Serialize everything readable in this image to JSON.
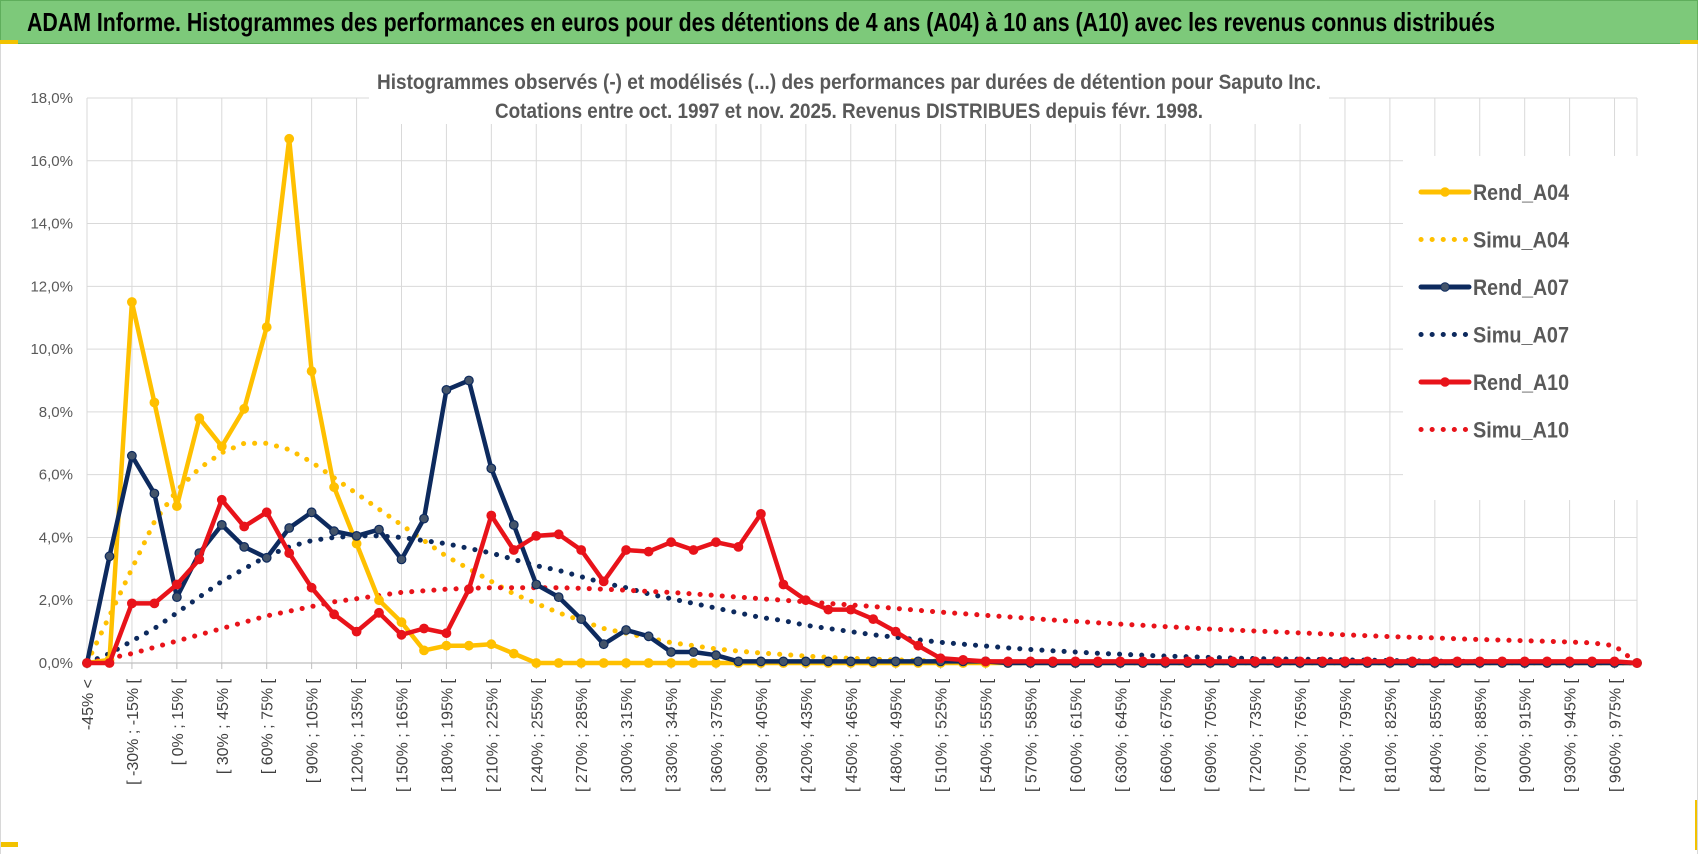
{
  "banner": {
    "title": "ADAM Informe. Histogrammes des performances en euros pour des détentions de 4 ans (A04) à 10 ans (A10) avec les revenus connus distribués"
  },
  "chart_data": {
    "type": "line",
    "title": "Histogrammes observés (-) et modélisés (...) des performances par durées de détention pour Saputo Inc.",
    "subtitle": "Cotations entre oct. 1997 et nov. 2025.  Revenus DISTRIBUES depuis févr. 1998.",
    "xlabel": "",
    "ylabel": "",
    "ylim": [
      0,
      18
    ],
    "yticks": [
      "0,0%",
      "2,0%",
      "4,0%",
      "6,0%",
      "8,0%",
      "10,0%",
      "12,0%",
      "14,0%",
      "16,0%",
      "18,0%"
    ],
    "grid": true,
    "legend_position": "right",
    "x_tick_labels": [
      "-45% <",
      "[ -30% ; -15% [",
      "[ 0% ; 15% [",
      "[ 30% ; 45% [",
      "[ 60% ; 75% [",
      "[ 90% ; 105% [",
      "[ 120% ; 135% [",
      "[ 150% ; 165% [",
      "[ 180% ; 195% [",
      "[ 210% ; 225% [",
      "[ 240% ; 255% [",
      "[ 270% ; 285% [",
      "[ 300% ; 315% [",
      "[ 330% ; 345% [",
      "[ 360% ; 375% [",
      "[ 390% ; 405% [",
      "[ 420% ; 435% [",
      "[ 450% ; 465% [",
      "[ 480% ; 495% [",
      "[ 510% ; 525% [",
      "[ 540% ; 555% [",
      "[ 570% ; 585% [",
      "[ 600% ; 615% [",
      "[ 630% ; 645% [",
      "[ 660% ; 675% [",
      "[ 690% ; 705% [",
      "[ 720% ; 735% [",
      "[ 750% ; 765% [",
      "[ 780% ; 795% [",
      "[ 810% ; 825% [",
      "[ 840% ; 855% [",
      "[ 870% ; 885% [",
      "[ 900% ; 915% [",
      "[ 930% ; 945% [",
      "[ 960% ; 975% ["
    ],
    "series": [
      {
        "name": "Rend_A04",
        "color": "#ffc000",
        "style": "solid",
        "marker": true,
        "values": [
          0,
          0.1,
          11.5,
          8.3,
          5.0,
          7.8,
          6.9,
          8.1,
          10.7,
          16.7,
          9.3,
          5.6,
          3.8,
          2.0,
          1.3,
          0.4,
          0.55,
          0.55,
          0.6,
          0.3,
          0,
          0,
          0,
          0,
          0,
          0,
          0,
          0,
          0,
          0,
          0,
          0,
          0,
          0,
          0,
          0,
          0,
          0,
          0,
          0,
          0,
          0,
          0,
          0,
          0,
          0,
          0,
          0,
          0,
          0,
          0,
          0,
          0,
          0,
          0,
          0,
          0,
          0,
          0,
          0,
          0,
          0,
          0,
          0,
          0,
          0,
          0,
          0,
          0,
          0
        ]
      },
      {
        "name": "Simu_A04",
        "color": "#ffc000",
        "style": "dotted",
        "marker": false,
        "values": [
          0,
          1.5,
          3.0,
          4.5,
          5.5,
          6.2,
          6.7,
          7.0,
          7.0,
          6.8,
          6.4,
          5.9,
          5.4,
          4.9,
          4.4,
          3.9,
          3.4,
          3.0,
          2.6,
          2.2,
          1.9,
          1.6,
          1.35,
          1.1,
          0.95,
          0.8,
          0.65,
          0.55,
          0.45,
          0.38,
          0.32,
          0.27,
          0.22,
          0.18,
          0.15,
          0.12,
          0.1,
          0.08,
          0.06,
          0.05,
          0.04,
          0.03,
          0.02,
          0.02,
          0.01,
          0.01,
          0,
          0,
          0,
          0,
          0,
          0,
          0,
          0,
          0,
          0,
          0,
          0,
          0,
          0,
          0,
          0,
          0,
          0,
          0,
          0,
          0,
          0,
          0,
          0
        ]
      },
      {
        "name": "Rend_A07",
        "color": "#0d2a5e",
        "style": "solid",
        "marker": true,
        "values": [
          0,
          3.4,
          6.6,
          5.4,
          2.1,
          3.5,
          4.4,
          3.7,
          3.35,
          4.3,
          4.8,
          4.2,
          4.05,
          4.25,
          3.3,
          4.6,
          8.7,
          9.0,
          6.2,
          4.4,
          2.5,
          2.1,
          1.4,
          0.6,
          1.05,
          0.85,
          0.35,
          0.35,
          0.25,
          0.05,
          0.05,
          0.05,
          0.05,
          0.05,
          0.05,
          0.05,
          0.05,
          0.05,
          0.05,
          0.05,
          0.05,
          0,
          0,
          0,
          0,
          0,
          0,
          0,
          0,
          0,
          0,
          0,
          0,
          0,
          0,
          0,
          0,
          0,
          0,
          0,
          0,
          0,
          0,
          0,
          0,
          0,
          0,
          0,
          0,
          0
        ]
      },
      {
        "name": "Simu_A07",
        "color": "#0d2a5e",
        "style": "dotted",
        "marker": false,
        "values": [
          0,
          0.3,
          0.7,
          1.1,
          1.6,
          2.1,
          2.6,
          3.0,
          3.4,
          3.7,
          3.9,
          4.0,
          4.05,
          4.05,
          4.0,
          3.9,
          3.8,
          3.65,
          3.5,
          3.3,
          3.1,
          2.95,
          2.75,
          2.55,
          2.4,
          2.2,
          2.05,
          1.9,
          1.75,
          1.6,
          1.45,
          1.35,
          1.2,
          1.1,
          1.0,
          0.9,
          0.82,
          0.74,
          0.66,
          0.6,
          0.54,
          0.48,
          0.43,
          0.39,
          0.35,
          0.31,
          0.28,
          0.25,
          0.22,
          0.2,
          0.18,
          0.16,
          0.14,
          0.13,
          0.12,
          0.11,
          0.1,
          0.09,
          0.08,
          0.07,
          0.06,
          0.05,
          0.05,
          0.04,
          0.04,
          0.03,
          0.03,
          0.03,
          0.02,
          0
        ]
      },
      {
        "name": "Rend_A10",
        "color": "#e8131a",
        "style": "solid",
        "marker": true,
        "values": [
          0,
          0,
          1.9,
          1.9,
          2.5,
          3.3,
          5.2,
          4.35,
          4.8,
          3.5,
          2.4,
          1.55,
          1.0,
          1.6,
          0.9,
          1.1,
          0.95,
          2.35,
          4.7,
          3.6,
          4.05,
          4.1,
          3.6,
          2.6,
          3.6,
          3.55,
          3.85,
          3.6,
          3.85,
          3.7,
          4.75,
          2.5,
          2.0,
          1.7,
          1.7,
          1.4,
          1.0,
          0.55,
          0.15,
          0.1,
          0.05,
          0.05,
          0.05,
          0.05,
          0.05,
          0.05,
          0.05,
          0.05,
          0.05,
          0.05,
          0.05,
          0.05,
          0.05,
          0.05,
          0.05,
          0.05,
          0.05,
          0.05,
          0.05,
          0.05,
          0.05,
          0.05,
          0.05,
          0.05,
          0.05,
          0.05,
          0.05,
          0.05,
          0.05,
          0
        ]
      },
      {
        "name": "Simu_A10",
        "color": "#e8131a",
        "style": "dotted",
        "marker": false,
        "values": [
          0,
          0.15,
          0.3,
          0.5,
          0.7,
          0.9,
          1.1,
          1.3,
          1.5,
          1.65,
          1.8,
          1.95,
          2.05,
          2.15,
          2.25,
          2.3,
          2.35,
          2.38,
          2.4,
          2.4,
          2.4,
          2.4,
          2.38,
          2.35,
          2.32,
          2.28,
          2.25,
          2.2,
          2.15,
          2.1,
          2.05,
          2.0,
          1.95,
          1.9,
          1.85,
          1.8,
          1.74,
          1.68,
          1.62,
          1.57,
          1.52,
          1.47,
          1.42,
          1.37,
          1.33,
          1.28,
          1.24,
          1.2,
          1.16,
          1.12,
          1.08,
          1.05,
          1.02,
          0.99,
          0.96,
          0.93,
          0.9,
          0.87,
          0.84,
          0.82,
          0.8,
          0.77,
          0.75,
          0.73,
          0.71,
          0.69,
          0.67,
          0.64,
          0.55,
          0
        ]
      }
    ]
  }
}
